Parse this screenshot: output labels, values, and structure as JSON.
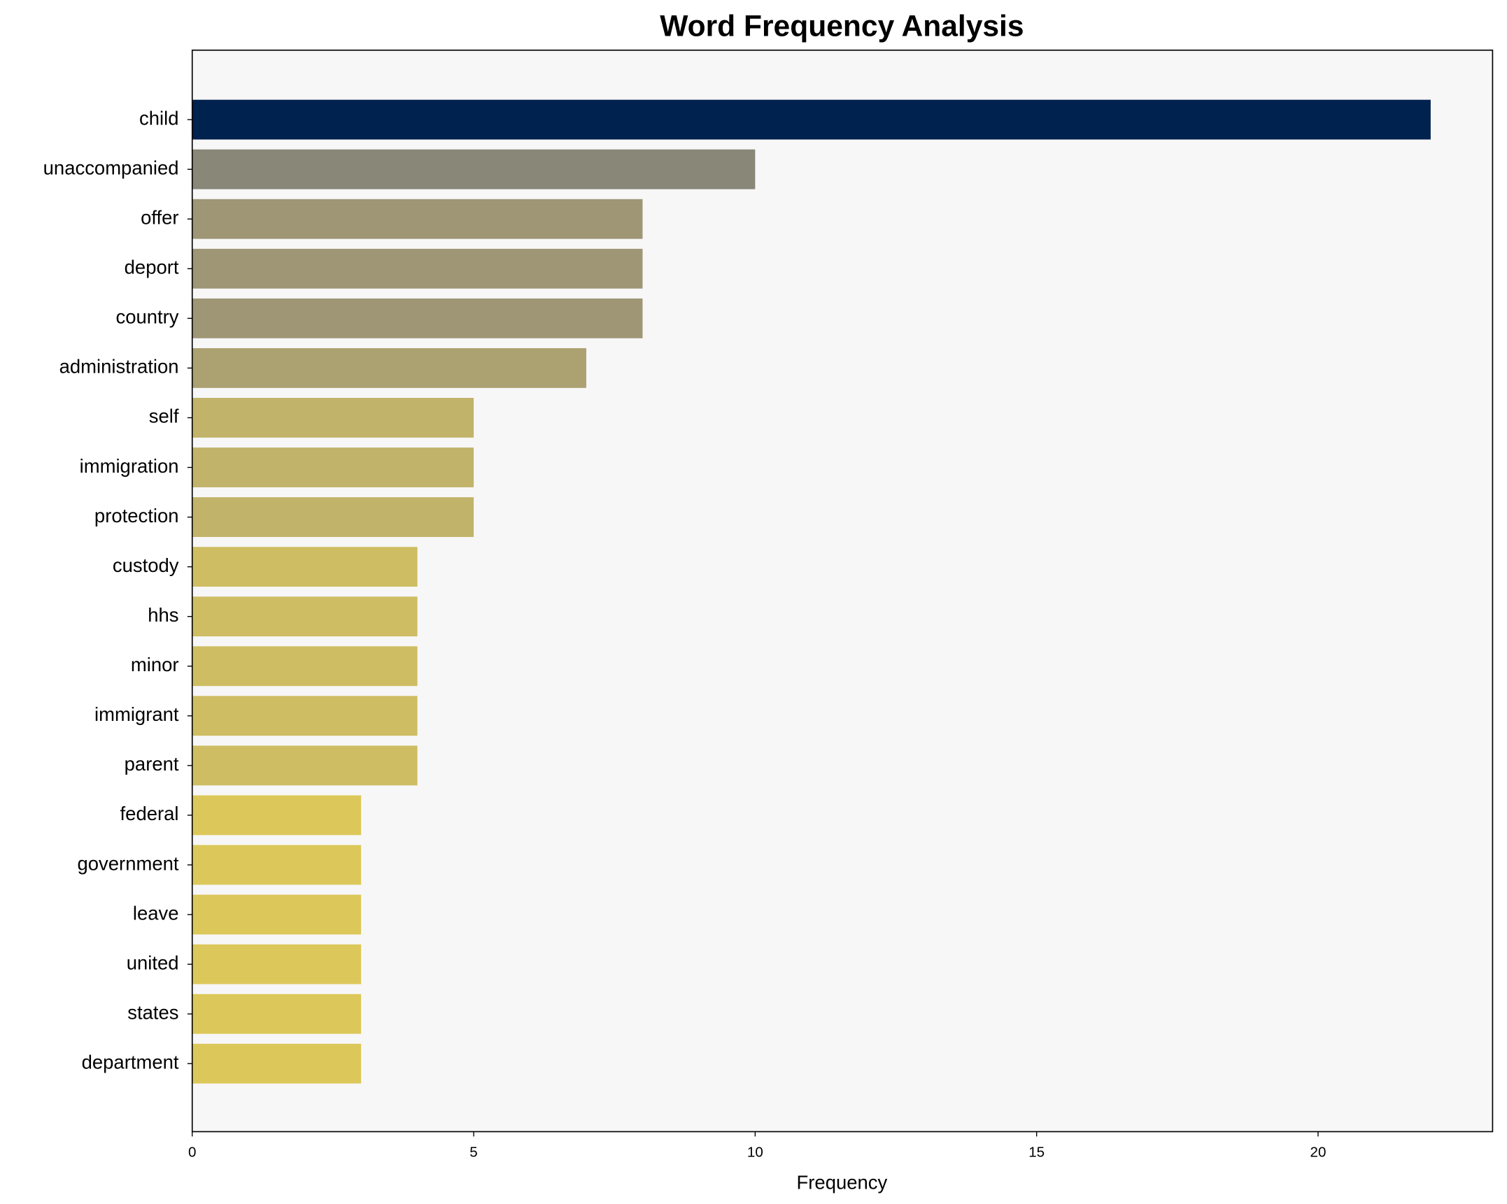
{
  "chart_data": {
    "type": "barh",
    "title": "Word Frequency Analysis",
    "x_label": "Frequency",
    "categories": [
      "child",
      "unaccompanied",
      "offer",
      "deport",
      "country",
      "administration",
      "self",
      "immigration",
      "protection",
      "custody",
      "hhs",
      "minor",
      "immigrant",
      "parent",
      "federal",
      "government",
      "leave",
      "united",
      "states",
      "department"
    ],
    "values": [
      22,
      10,
      8,
      8,
      8,
      7,
      5,
      5,
      5,
      4,
      4,
      4,
      4,
      4,
      3,
      3,
      3,
      3,
      3,
      3
    ],
    "colors": [
      "#00224e",
      "#888778",
      "#9e9675",
      "#9e9675",
      "#9e9675",
      "#aba171",
      "#c2b36a",
      "#c2b36a",
      "#c2b36a",
      "#cebd63",
      "#cebd63",
      "#cebd63",
      "#cebd63",
      "#cebd63",
      "#dcc85a",
      "#dcc85a",
      "#dcc85a",
      "#dcc85a",
      "#dcc85a",
      "#dcc85a"
    ],
    "xlim": [
      0,
      23.1
    ],
    "xticks": [
      0,
      5,
      10,
      15,
      20
    ],
    "background": "#f7f7f7"
  }
}
